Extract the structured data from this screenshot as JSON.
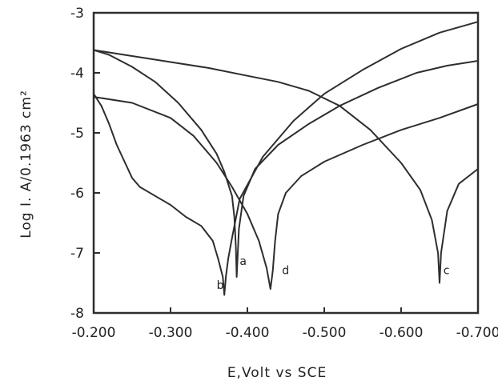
{
  "chart_data": {
    "type": "line",
    "title": "",
    "xlabel": "E,Volt vs SCE",
    "ylabel": "Log I. A/0.1963 cm²",
    "xlim": [
      -0.2,
      -0.7
    ],
    "ylim": [
      -8,
      -3
    ],
    "x_ticks": [
      -0.2,
      -0.3,
      -0.4,
      -0.5,
      -0.6,
      -0.7
    ],
    "x_tick_labels": [
      "-0.200",
      "-0.300",
      "-0.400",
      "-0.500",
      "-0.600",
      "-0.700"
    ],
    "y_ticks": [
      -3,
      -4,
      -5,
      -6,
      -7,
      -8
    ],
    "y_tick_labels": [
      "-3",
      "-4",
      "-5",
      "-6",
      "-7",
      "-8"
    ],
    "grid": false,
    "colors": {
      "ink": "#2e2e2e",
      "background": "#ffffff"
    },
    "series": [
      {
        "name": "a",
        "label_at": [
          -0.39,
          -7.2
        ],
        "x": [
          -0.2,
          -0.22,
          -0.25,
          -0.28,
          -0.31,
          -0.34,
          -0.36,
          -0.37,
          -0.38,
          -0.383,
          -0.385,
          -0.386,
          -0.389,
          -0.395,
          -0.41,
          -0.44,
          -0.48,
          -0.52,
          -0.57,
          -0.62,
          -0.66,
          -0.7
        ],
        "y": [
          -3.62,
          -3.7,
          -3.9,
          -4.15,
          -4.5,
          -4.95,
          -5.35,
          -5.65,
          -6.05,
          -6.4,
          -6.9,
          -7.4,
          -6.6,
          -6.05,
          -5.6,
          -5.2,
          -4.85,
          -4.55,
          -4.25,
          -4.0,
          -3.88,
          -3.8
        ]
      },
      {
        "name": "b",
        "label_at": [
          -0.36,
          -7.6
        ],
        "x": [
          -0.2,
          -0.21,
          -0.22,
          -0.23,
          -0.25,
          -0.26,
          -0.28,
          -0.3,
          -0.32,
          -0.34,
          -0.355,
          -0.362,
          -0.368,
          -0.37,
          -0.372,
          -0.375,
          -0.38,
          -0.39,
          -0.42,
          -0.46,
          -0.5,
          -0.55,
          -0.6,
          -0.65,
          -0.7
        ],
        "y": [
          -4.35,
          -4.55,
          -4.85,
          -5.2,
          -5.75,
          -5.9,
          -6.05,
          -6.2,
          -6.4,
          -6.55,
          -6.8,
          -7.1,
          -7.4,
          -7.7,
          -7.4,
          -7.1,
          -6.75,
          -6.1,
          -5.4,
          -4.8,
          -4.35,
          -3.95,
          -3.6,
          -3.33,
          -3.15
        ]
      },
      {
        "name": "c",
        "label_at": [
          -0.655,
          -7.35
        ],
        "x": [
          -0.2,
          -0.25,
          -0.3,
          -0.35,
          -0.4,
          -0.44,
          -0.48,
          -0.52,
          -0.56,
          -0.6,
          -0.625,
          -0.64,
          -0.648,
          -0.65,
          -0.652,
          -0.66,
          -0.675,
          -0.7
        ],
        "y": [
          -3.62,
          -3.72,
          -3.82,
          -3.92,
          -4.05,
          -4.15,
          -4.3,
          -4.55,
          -4.95,
          -5.5,
          -5.95,
          -6.45,
          -7.0,
          -7.5,
          -7.0,
          -6.3,
          -5.85,
          -5.6
        ]
      },
      {
        "name": "d",
        "label_at": [
          -0.445,
          -7.35
        ],
        "x": [
          -0.2,
          -0.25,
          -0.3,
          -0.33,
          -0.36,
          -0.38,
          -0.4,
          -0.415,
          -0.425,
          -0.43,
          -0.433,
          -0.436,
          -0.44,
          -0.45,
          -0.47,
          -0.5,
          -0.55,
          -0.6,
          -0.65,
          -0.7
        ],
        "y": [
          -4.4,
          -4.5,
          -4.75,
          -5.05,
          -5.5,
          -5.9,
          -6.35,
          -6.8,
          -7.25,
          -7.6,
          -7.3,
          -6.8,
          -6.35,
          -6.0,
          -5.72,
          -5.48,
          -5.2,
          -4.95,
          -4.75,
          -4.52
        ]
      }
    ]
  }
}
